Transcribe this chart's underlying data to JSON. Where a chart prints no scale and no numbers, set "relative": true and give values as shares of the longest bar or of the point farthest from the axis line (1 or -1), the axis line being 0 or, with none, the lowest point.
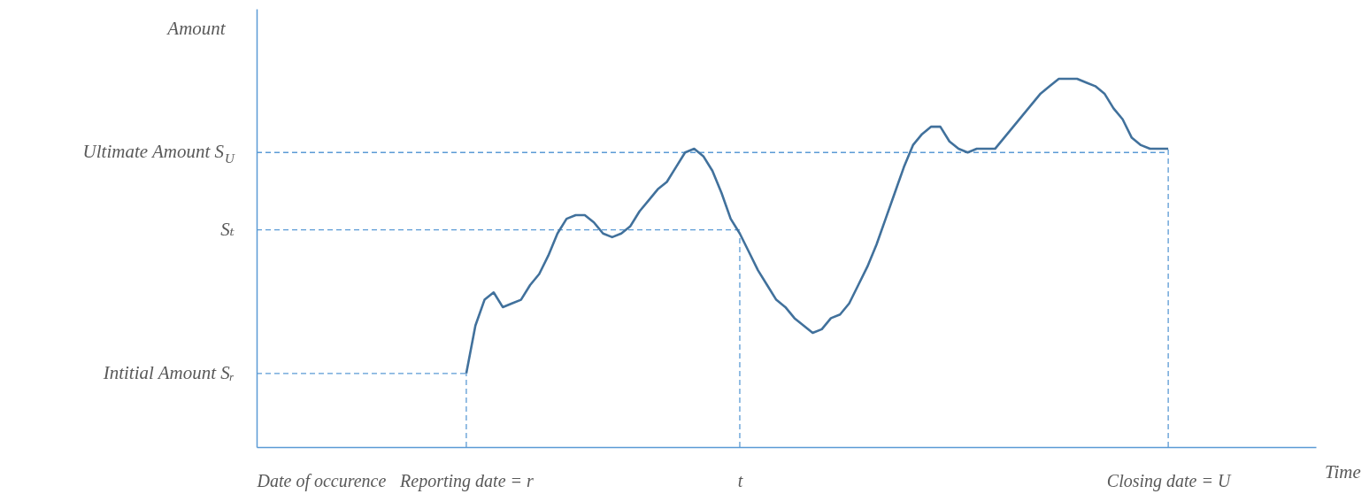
{
  "chart_data": {
    "type": "line",
    "relative": true,
    "annotations": [
      "Amount",
      "Time"
    ],
    "categories": [
      "Date of occurence",
      null,
      null,
      null,
      null,
      null,
      null,
      null,
      null,
      null,
      null,
      null,
      null,
      null,
      null,
      null,
      null,
      null,
      null,
      null,
      null,
      null,
      null,
      "Reporting date = r",
      null,
      null,
      null,
      null,
      null,
      null,
      null,
      null,
      null,
      null,
      null,
      null,
      null,
      null,
      null,
      null,
      null,
      null,
      null,
      null,
      null,
      null,
      null,
      null,
      null,
      null,
      null,
      null,
      null,
      "t",
      null,
      null,
      null,
      null,
      null,
      null,
      null,
      null,
      null,
      null,
      null,
      null,
      null,
      null,
      null,
      null,
      null,
      null,
      null,
      null,
      null,
      null,
      null,
      null,
      null,
      null,
      null,
      null,
      null,
      null,
      null,
      null,
      null,
      null,
      null,
      null,
      null,
      null,
      null,
      null,
      null,
      null,
      null,
      null,
      null,
      null,
      "Closing date = U"
    ],
    "series": [
      {
        "color": "#41719c",
        "values": [
          null,
          null,
          null,
          null,
          null,
          null,
          null,
          null,
          null,
          null,
          null,
          null,
          null,
          null,
          null,
          null,
          null,
          null,
          null,
          null,
          null,
          null,
          null,
          0.2,
          0.33,
          0.4,
          0.42,
          0.38,
          0.39,
          0.4,
          0.44,
          0.47,
          0.52,
          0.58,
          0.62,
          0.63,
          0.63,
          0.61,
          0.58,
          0.57,
          0.58,
          0.6,
          0.64,
          0.67,
          0.7,
          0.72,
          0.76,
          0.8,
          0.81,
          0.79,
          0.75,
          0.69,
          0.62,
          0.58,
          0.53,
          0.48,
          0.44,
          0.4,
          0.38,
          0.35,
          0.33,
          0.31,
          0.32,
          0.35,
          0.36,
          0.39,
          0.44,
          0.49,
          0.55,
          0.62,
          0.69,
          0.76,
          0.82,
          0.85,
          0.87,
          0.87,
          0.83,
          0.81,
          0.8,
          0.81,
          0.81,
          0.81,
          0.84,
          0.87,
          0.9,
          0.93,
          0.96,
          0.98,
          1.0,
          1.0,
          1.0,
          0.99,
          0.98,
          0.96,
          0.92,
          0.89,
          0.84,
          0.82,
          0.81,
          0.81,
          0.81
        ]
      }
    ],
    "ref_lines": [
      {
        "axis": "y",
        "value": 0.2,
        "label": "Intitial Amount Sᵣ",
        "color": "#5b9bd5",
        "line_style": "dashed"
      },
      {
        "axis": "y",
        "value": 0.59,
        "label": "Sₜ",
        "color": "#5b9bd5",
        "line_style": "dashed"
      },
      {
        "axis": "y",
        "value": 0.8,
        "label": "Ultimate Amount S$_{U}$",
        "color": "#5b9bd5",
        "line_style": "dashed"
      },
      {
        "axis": "x",
        "value": "Reporting date = r",
        "color": "#5b9bd5",
        "line_style": "dashed"
      },
      {
        "axis": "x",
        "value": "t",
        "color": "#5b9bd5",
        "line_style": "dashed"
      },
      {
        "axis": "x",
        "value": "Closing date = U",
        "color": "#5b9bd5",
        "line_style": "dashed"
      }
    ],
    "grid": false
  }
}
